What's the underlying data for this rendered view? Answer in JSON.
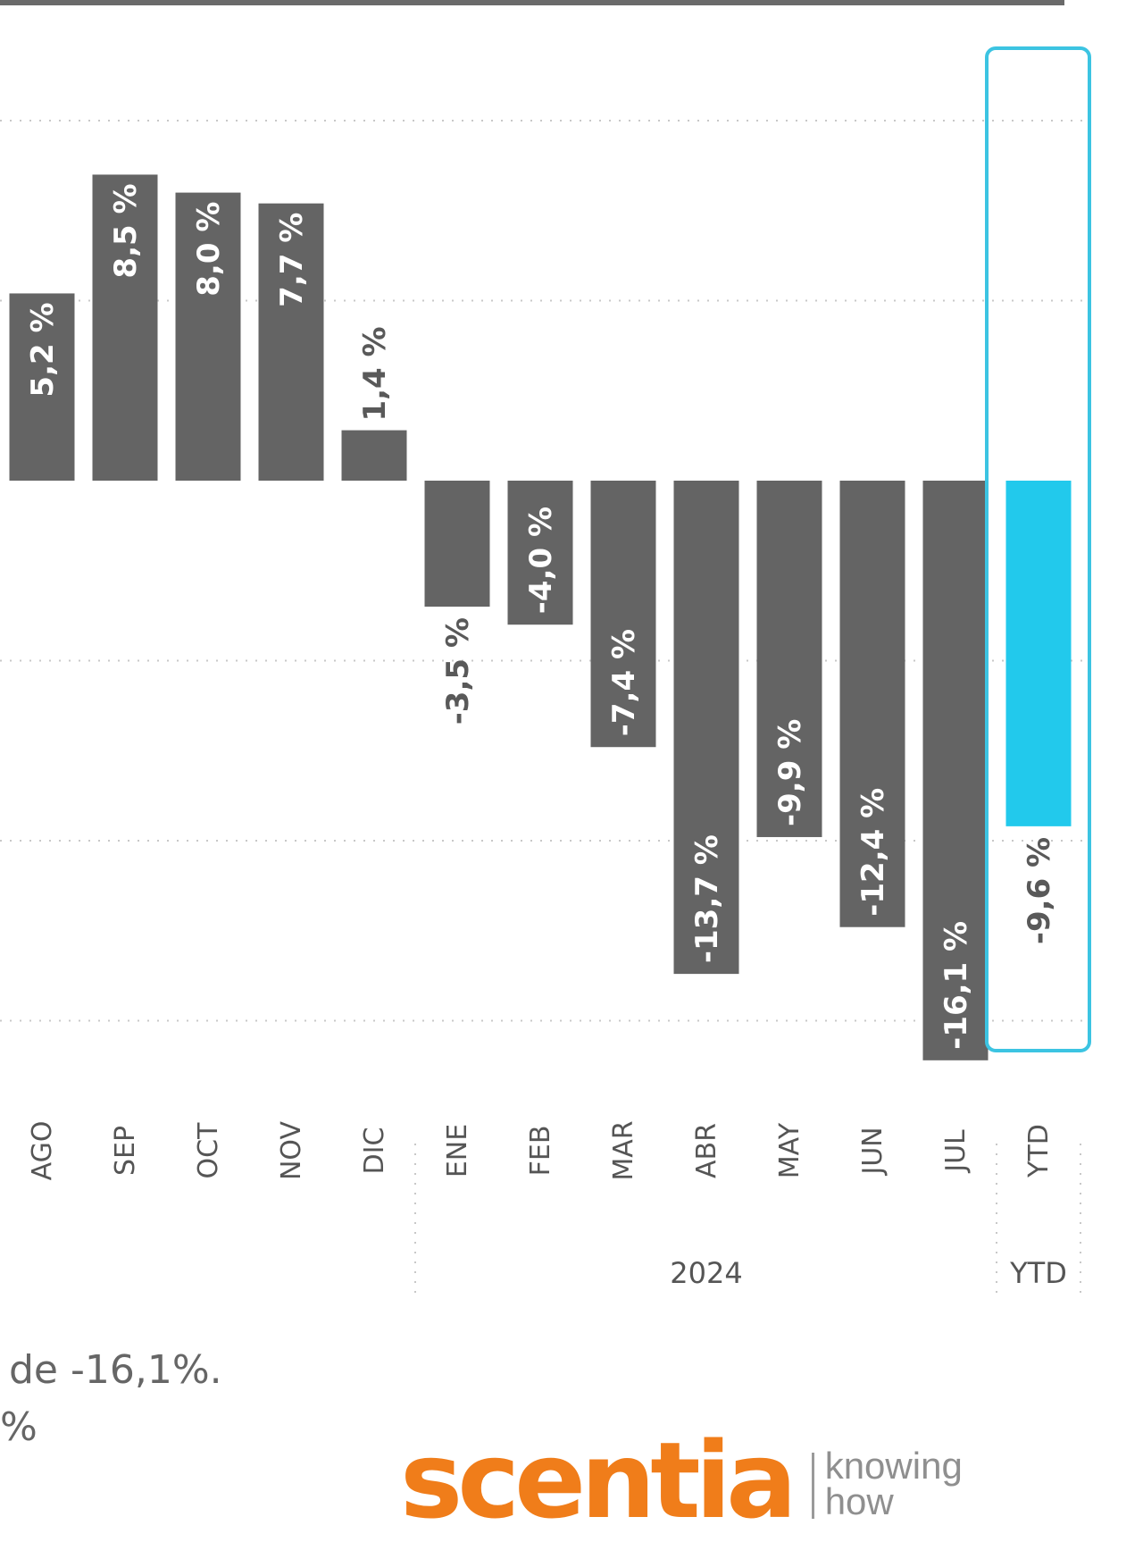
{
  "chart_data": {
    "type": "bar",
    "categories": [
      "AGO",
      "SEP",
      "OCT",
      "NOV",
      "DIC",
      "ENE",
      "FEB",
      "MAR",
      "ABR",
      "MAY",
      "JUN",
      "JUL",
      "YTD"
    ],
    "values": [
      5.2,
      8.5,
      8.0,
      7.7,
      1.4,
      -3.5,
      -4.0,
      -7.4,
      -13.7,
      -9.9,
      -12.4,
      -16.1,
      -9.6
    ],
    "value_labels": [
      "5,2 %",
      "8,5 %",
      "8,0 %",
      "7,7 %",
      "1,4 %",
      "-3,5 %",
      "-4,0 %",
      "-7,4 %",
      "-13,7 %",
      "-9,9 %",
      "-12,4 %",
      "-16,1 %",
      "-9,6 %"
    ],
    "group_labels": [
      {
        "label": "2024",
        "categories": [
          "ENE",
          "FEB",
          "MAR",
          "ABR",
          "MAY",
          "JUN",
          "JUL"
        ]
      },
      {
        "label": "YTD",
        "categories": [
          "YTD"
        ]
      }
    ],
    "highlighted_category": "YTD",
    "ylim": [
      -17,
      10
    ],
    "gridlines": [
      10,
      5,
      -5,
      -10,
      -15
    ],
    "grid": true,
    "bar_color": "#646464",
    "highlight_color": "#22c9ec",
    "highlight_box_color": "#3cc4e2"
  },
  "caption": {
    "line1": "de -16,1%.",
    "line2": "%"
  },
  "logo": {
    "wordmark": "scentia",
    "tagline_1": "knowing",
    "tagline_2": "how"
  }
}
